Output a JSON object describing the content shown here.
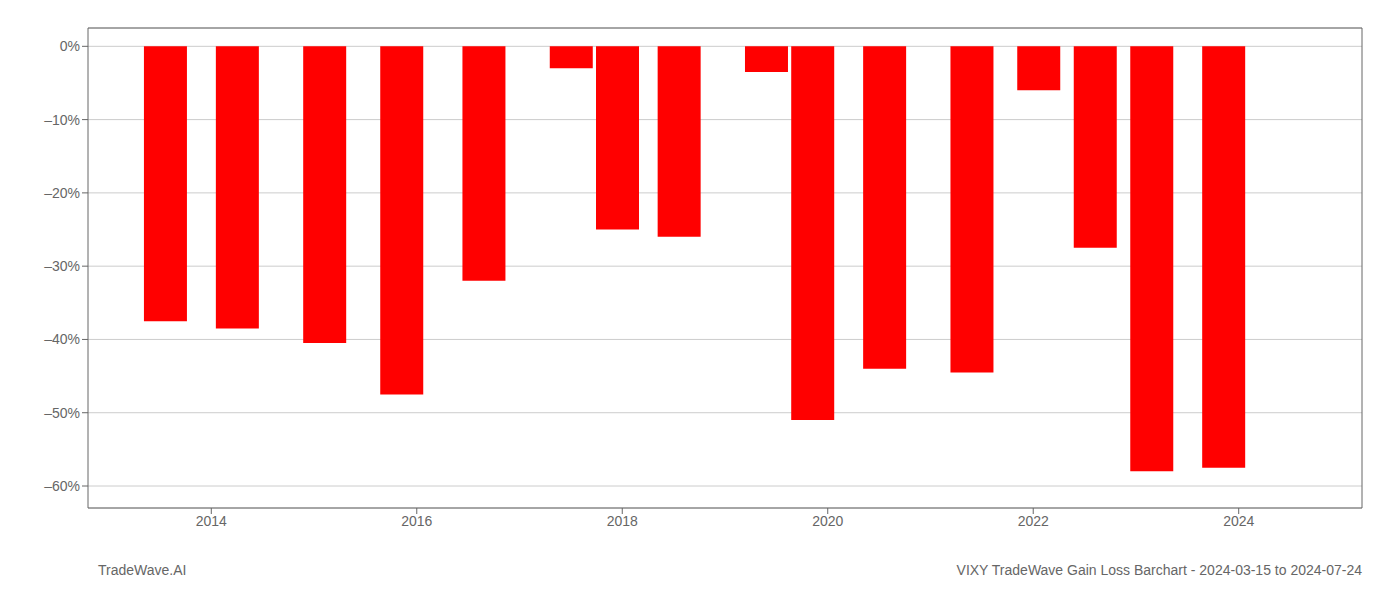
{
  "chart_data": {
    "type": "bar",
    "x": [
      2013.55,
      2014.25,
      2015.1,
      2015.85,
      2016.65,
      2017.5,
      2017.95,
      2018.55,
      2019.4,
      2019.85,
      2020.55,
      2021.4,
      2022.05,
      2022.6,
      2023.15,
      2023.85
    ],
    "values": [
      -37.5,
      -38.5,
      -40.5,
      -47.5,
      -32.0,
      -3.0,
      -25.0,
      -26.0,
      -3.5,
      -51.0,
      -44.0,
      -44.5,
      -6.0,
      -27.5,
      -58.0,
      -57.5
    ],
    "color": "#ff0000",
    "xlim": [
      2012.8,
      2025.2
    ],
    "ylim": [
      -63,
      2.5
    ],
    "xticks": [
      2014,
      2016,
      2018,
      2020,
      2022,
      2024
    ],
    "yticks": [
      {
        "value": 0,
        "label": "0%"
      },
      {
        "value": -10,
        "label": "–10%"
      },
      {
        "value": -20,
        "label": "–20%"
      },
      {
        "value": -30,
        "label": "–30%"
      },
      {
        "value": -40,
        "label": "–40%"
      },
      {
        "value": -50,
        "label": "–50%"
      },
      {
        "value": -60,
        "label": "–60%"
      }
    ],
    "grid": "y",
    "annotations": [
      "TradeWave.AI",
      "VIXY TradeWave Gain Loss Barchart - 2024-03-15 to 2024-07-24"
    ]
  }
}
